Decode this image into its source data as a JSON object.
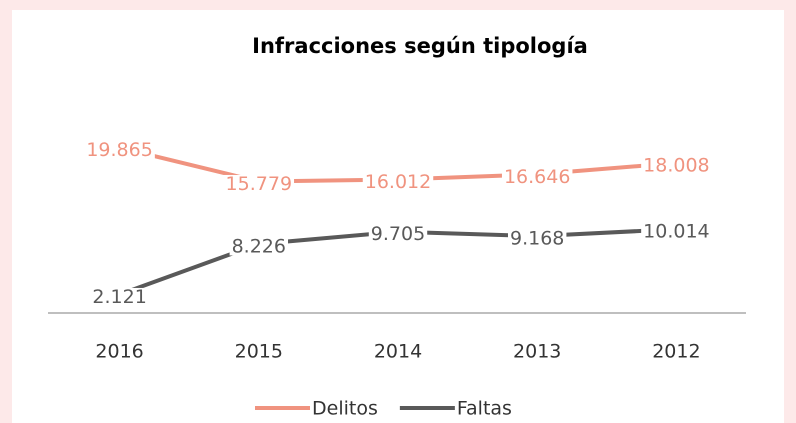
{
  "chart_data": {
    "type": "line",
    "title": "Infracciones según tipología",
    "categories": [
      "2016",
      "2015",
      "2014",
      "2013",
      "2012"
    ],
    "series": [
      {
        "name": "Delitos",
        "color": "#f0937f",
        "values": [
          19865,
          15779,
          16012,
          16646,
          18008
        ],
        "value_labels": [
          "19.865",
          "15.779",
          "16.012",
          "16.646",
          "18.008"
        ]
      },
      {
        "name": "Faltas",
        "color": "#595959",
        "values": [
          2121,
          8226,
          9705,
          9168,
          10014
        ],
        "value_labels": [
          "2.121",
          "8.226",
          "9.705",
          "9.168",
          "10.014"
        ]
      }
    ],
    "ylim": [
      0,
      22000
    ],
    "legend": "bottom"
  }
}
